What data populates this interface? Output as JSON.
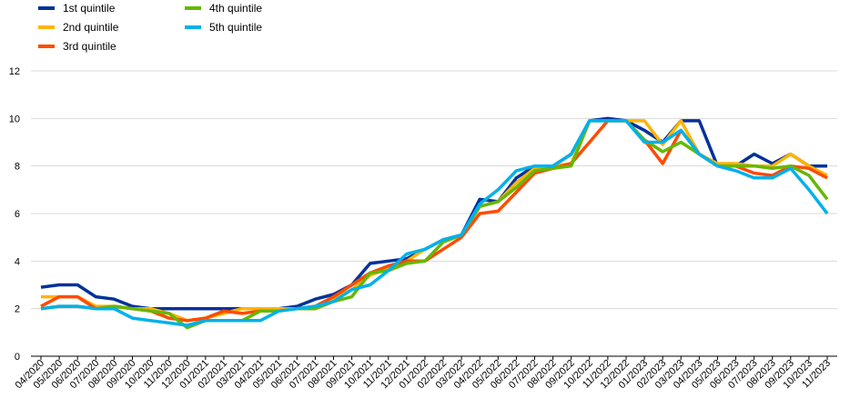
{
  "chart_data": {
    "type": "line",
    "title": "",
    "xlabel": "",
    "ylabel": "",
    "ylim": [
      0,
      12
    ],
    "yticks": [
      0,
      2,
      4,
      6,
      8,
      10,
      12
    ],
    "grid": "horizontal",
    "legend_position": "top-left",
    "categories": [
      "04/2020",
      "05/2020",
      "06/2020",
      "07/2020",
      "08/2020",
      "09/2020",
      "10/2020",
      "11/2020",
      "12/2020",
      "01/2021",
      "02/2021",
      "03/2021",
      "04/2021",
      "05/2021",
      "06/2021",
      "07/2021",
      "08/2021",
      "09/2021",
      "10/2021",
      "11/2021",
      "12/2021",
      "01/2022",
      "02/2022",
      "03/2022",
      "04/2022",
      "05/2022",
      "06/2022",
      "07/2022",
      "08/2022",
      "09/2022",
      "10/2022",
      "11/2022",
      "12/2022",
      "01/2023",
      "02/2023",
      "03/2023",
      "04/2023",
      "05/2023",
      "06/2023",
      "07/2023",
      "08/2023",
      "09/2023",
      "10/2023",
      "11/2023"
    ],
    "series": [
      {
        "name": "1st quintile",
        "color": "#003299",
        "values": [
          2.9,
          3.0,
          3.0,
          2.5,
          2.4,
          2.1,
          2.0,
          2.0,
          2.0,
          2.0,
          2.0,
          2.0,
          2.0,
          2.0,
          2.1,
          2.4,
          2.6,
          3.0,
          3.9,
          4.0,
          4.1,
          4.5,
          4.9,
          5.1,
          6.6,
          6.5,
          7.5,
          8.0,
          8.0,
          8.5,
          9.9,
          10.0,
          9.9,
          9.5,
          9.0,
          9.9,
          9.9,
          8.0,
          8.0,
          8.5,
          8.1,
          8.5,
          8.0,
          8.0
        ]
      },
      {
        "name": "2nd quintile",
        "color": "#FFB400",
        "values": [
          2.5,
          2.5,
          2.5,
          2.1,
          2.1,
          2.0,
          2.0,
          1.8,
          1.5,
          1.6,
          1.8,
          2.0,
          2.0,
          2.0,
          2.0,
          2.1,
          2.4,
          2.8,
          3.4,
          3.7,
          4.0,
          4.5,
          4.9,
          5.1,
          6.3,
          6.5,
          7.3,
          7.9,
          8.0,
          8.1,
          9.9,
          9.9,
          9.9,
          9.9,
          8.9,
          9.9,
          8.5,
          8.1,
          8.1,
          8.0,
          8.0,
          8.5,
          8.0,
          7.6
        ]
      },
      {
        "name": "3rd quintile",
        "color": "#FF4B00",
        "values": [
          2.1,
          2.5,
          2.5,
          2.0,
          2.1,
          2.0,
          1.9,
          1.6,
          1.5,
          1.6,
          1.9,
          1.8,
          1.9,
          1.9,
          2.0,
          2.1,
          2.5,
          3.0,
          3.5,
          3.8,
          4.0,
          4.0,
          4.5,
          5.0,
          6.0,
          6.1,
          6.9,
          7.7,
          7.9,
          8.1,
          9.0,
          9.9,
          9.9,
          9.1,
          8.1,
          9.5,
          8.5,
          8.0,
          8.0,
          7.7,
          7.6,
          8.0,
          7.9,
          7.5
        ]
      },
      {
        "name": "4th quintile",
        "color": "#65B800",
        "values": [
          2.0,
          2.1,
          2.1,
          2.0,
          2.1,
          2.0,
          1.9,
          1.8,
          1.2,
          1.5,
          1.5,
          1.5,
          1.9,
          1.9,
          2.0,
          2.0,
          2.3,
          2.5,
          3.5,
          3.6,
          3.9,
          4.0,
          4.8,
          5.1,
          6.3,
          6.5,
          7.1,
          7.8,
          7.9,
          8.0,
          9.9,
          9.9,
          9.9,
          9.1,
          8.6,
          9.0,
          8.5,
          8.0,
          8.0,
          8.0,
          7.9,
          8.0,
          7.6,
          6.6
        ]
      },
      {
        "name": "5th quintile",
        "color": "#00B1EA",
        "values": [
          2.0,
          2.1,
          2.1,
          2.0,
          2.0,
          1.6,
          1.5,
          1.4,
          1.3,
          1.5,
          1.5,
          1.5,
          1.5,
          1.9,
          2.0,
          2.1,
          2.3,
          2.8,
          3.0,
          3.6,
          4.3,
          4.5,
          4.9,
          5.1,
          6.4,
          7.0,
          7.8,
          8.0,
          8.0,
          8.5,
          9.9,
          9.9,
          9.9,
          9.0,
          9.0,
          9.5,
          8.5,
          8.0,
          7.8,
          7.5,
          7.5,
          7.9,
          7.0,
          6.0
        ]
      }
    ]
  }
}
